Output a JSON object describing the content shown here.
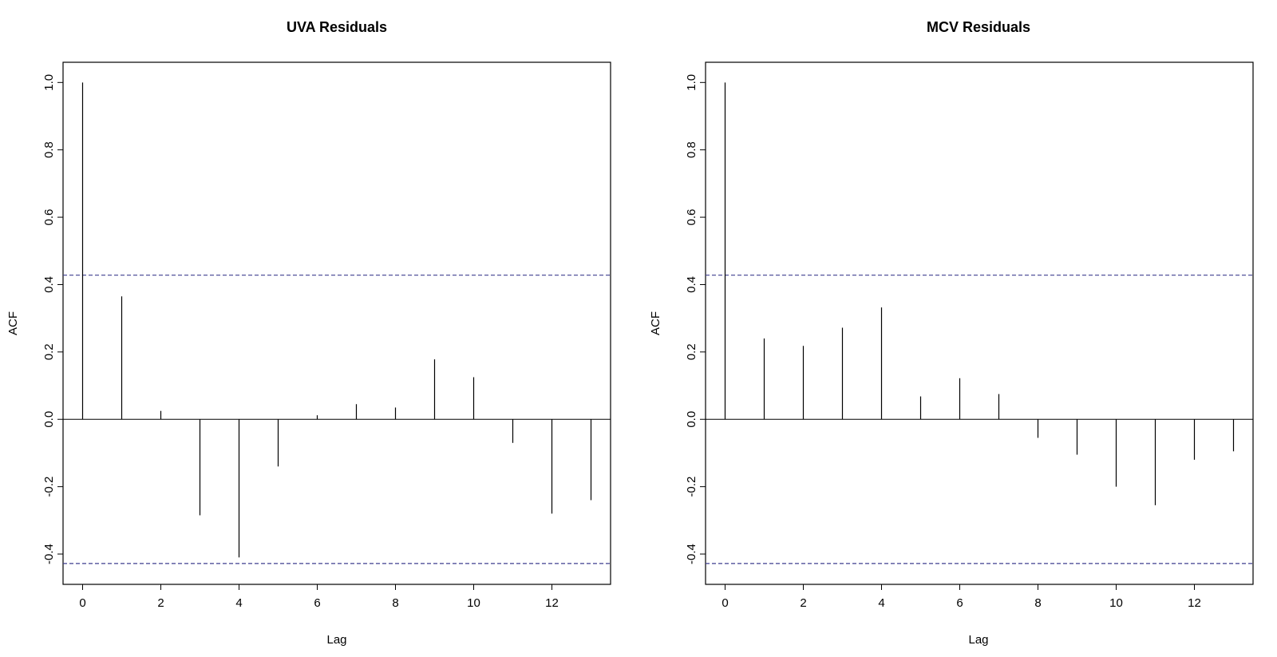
{
  "chart_data": [
    {
      "type": "bar",
      "title": "UVA Residuals",
      "xlabel": "Lag",
      "ylabel": "ACF",
      "x": [
        0,
        1,
        2,
        3,
        4,
        5,
        6,
        7,
        8,
        9,
        10,
        11,
        12,
        13
      ],
      "values": [
        1.0,
        0.365,
        0.025,
        -0.285,
        -0.41,
        -0.14,
        0.012,
        0.045,
        0.035,
        0.178,
        0.125,
        -0.07,
        -0.28,
        -0.24
      ],
      "confidence_band": [
        -0.428,
        0.428
      ],
      "confidence_color": "#3f3f8f",
      "xlim": [
        -0.5,
        13.5
      ],
      "ylim": [
        -0.49,
        1.06
      ],
      "xticks": [
        "0",
        "2",
        "4",
        "6",
        "8",
        "10",
        "12"
      ],
      "yticks": [
        "-0.4",
        "-0.2",
        "0.0",
        "0.2",
        "0.4",
        "0.6",
        "0.8",
        "1.0"
      ],
      "grid": false
    },
    {
      "type": "bar",
      "title": "MCV Residuals",
      "xlabel": "Lag",
      "ylabel": "ACF",
      "x": [
        0,
        1,
        2,
        3,
        4,
        5,
        6,
        7,
        8,
        9,
        10,
        11,
        12,
        13
      ],
      "values": [
        1.0,
        0.24,
        0.218,
        0.272,
        0.332,
        0.068,
        0.122,
        0.075,
        -0.055,
        -0.105,
        -0.2,
        -0.255,
        -0.12,
        -0.095
      ],
      "confidence_band": [
        -0.428,
        0.428
      ],
      "confidence_color": "#3f3f8f",
      "xlim": [
        -0.5,
        13.5
      ],
      "ylim": [
        -0.49,
        1.06
      ],
      "xticks": [
        "0",
        "2",
        "4",
        "6",
        "8",
        "10",
        "12"
      ],
      "yticks": [
        "-0.4",
        "-0.2",
        "0.0",
        "0.2",
        "0.4",
        "0.6",
        "0.8",
        "1.0"
      ],
      "grid": false
    }
  ]
}
